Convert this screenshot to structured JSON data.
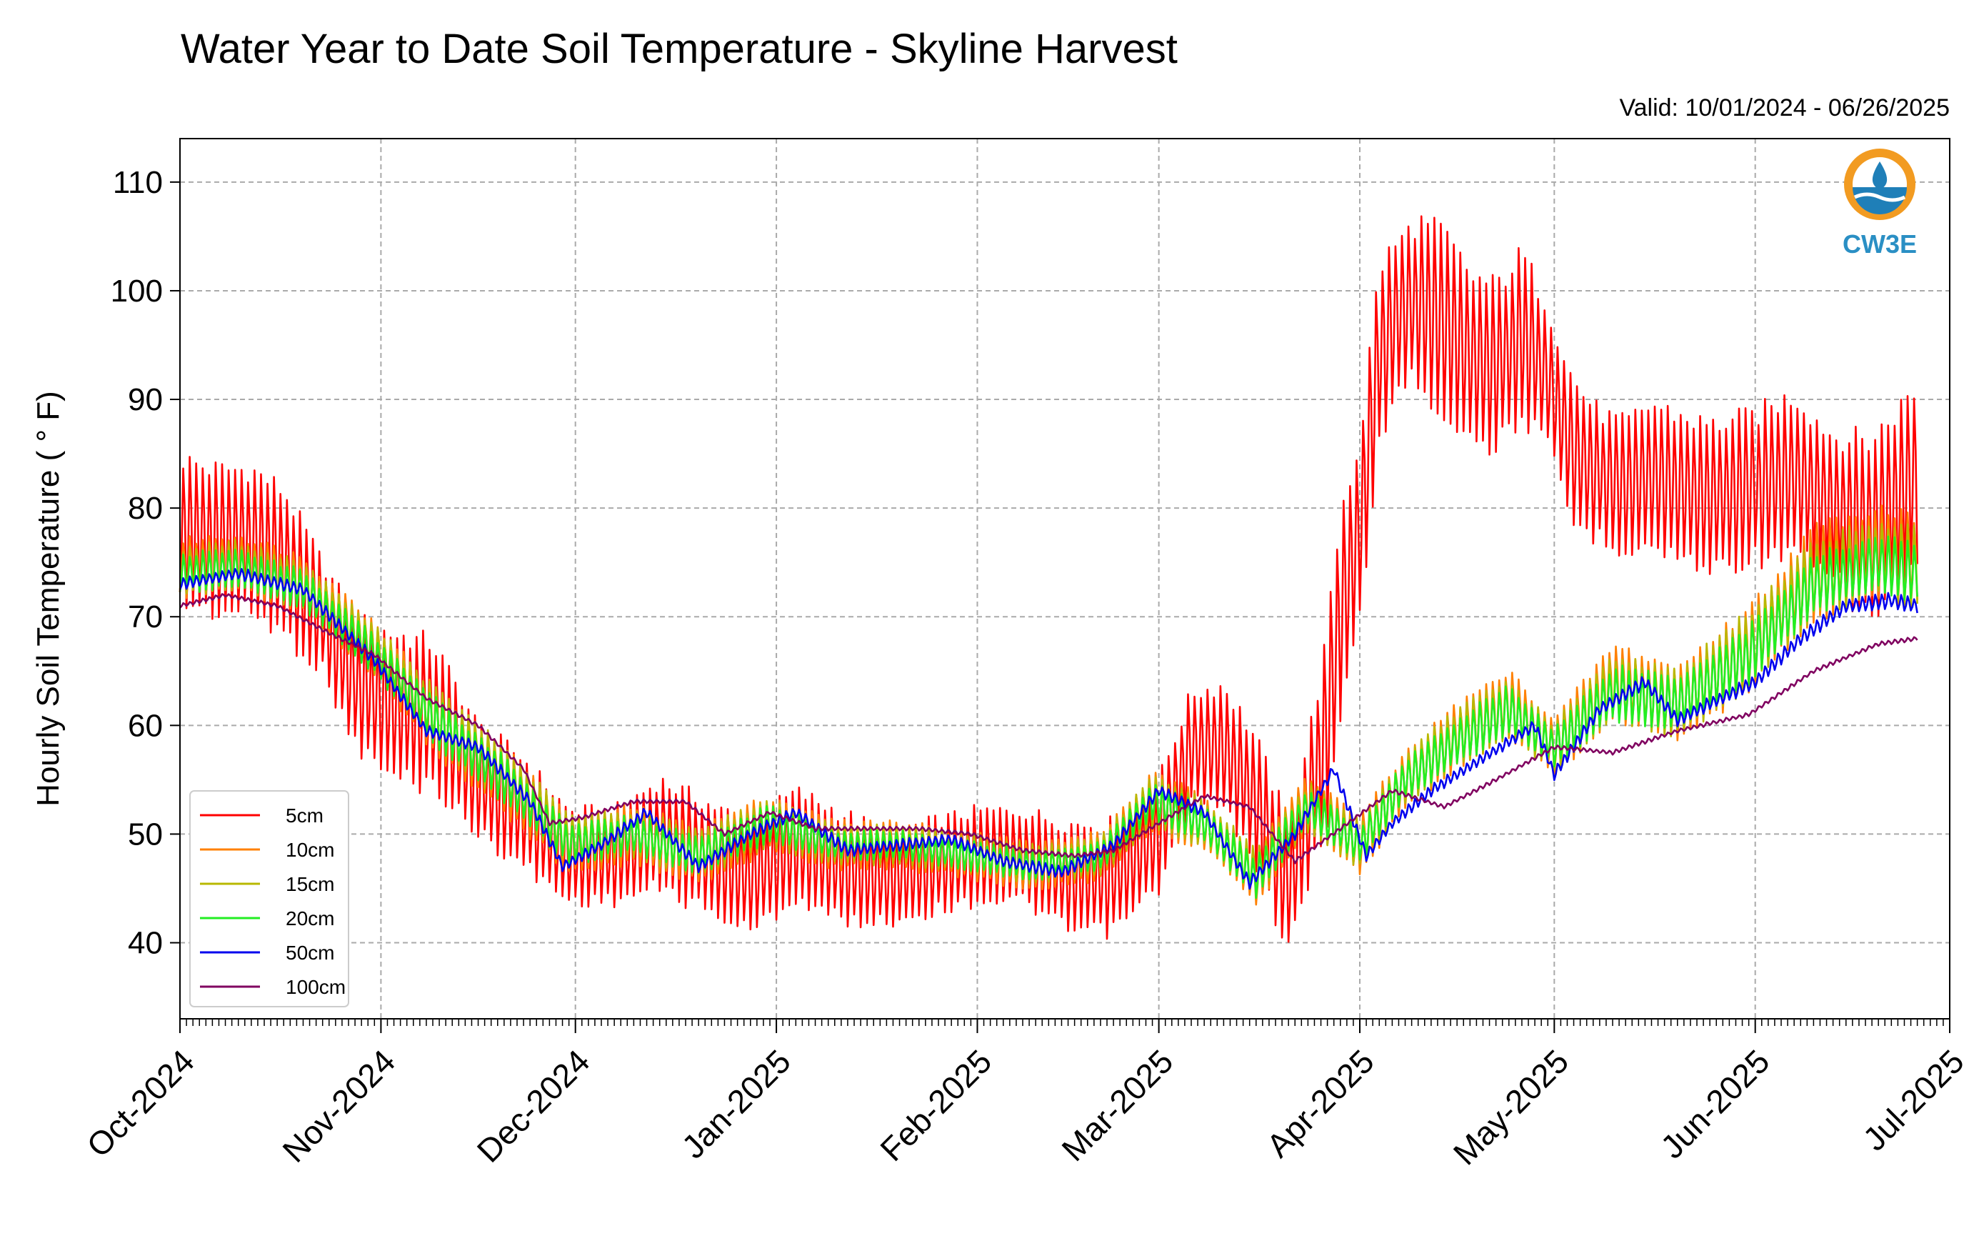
{
  "chart_data": {
    "type": "line",
    "title": "Water Year to Date Soil Temperature - Skyline Harvest",
    "subtitle": "Valid: 10/01/2024 - 06/26/2025",
    "xlabel": "",
    "ylabel": "Hourly Soil Temperature ( ° F)",
    "xlim": [
      "2024-10-01",
      "2025-07-01"
    ],
    "ylim": [
      33,
      114
    ],
    "yticks": [
      40,
      50,
      60,
      70,
      80,
      90,
      100,
      110
    ],
    "xticks": [
      "2024-10-01",
      "2024-11-01",
      "2024-12-01",
      "2025-01-01",
      "2025-02-01",
      "2025-03-01",
      "2025-04-01",
      "2025-05-01",
      "2025-06-01",
      "2025-07-01"
    ],
    "xtick_labels": [
      "Oct-2024",
      "Nov-2024",
      "Dec-2024",
      "Jan-2025",
      "Feb-2025",
      "Mar-2025",
      "Apr-2025",
      "May-2025",
      "Jun-2025",
      "Jul-2025"
    ],
    "grid": true,
    "legend_position": "lower-left",
    "logo_text": "CW3E",
    "series": [
      {
        "name": "5cm",
        "color": "#ff0000",
        "x": [
          "2024-10-01",
          "2024-10-06",
          "2024-10-12",
          "2024-10-17",
          "2024-10-23",
          "2024-10-28",
          "2024-11-02",
          "2024-11-09",
          "2024-11-16",
          "2024-11-23",
          "2024-11-30",
          "2024-12-07",
          "2024-12-14",
          "2024-12-21",
          "2024-12-28",
          "2025-01-04",
          "2025-01-11",
          "2025-01-18",
          "2025-01-25",
          "2025-02-01",
          "2025-02-08",
          "2025-02-15",
          "2025-02-22",
          "2025-03-01",
          "2025-03-06",
          "2025-03-11",
          "2025-03-16",
          "2025-03-21",
          "2025-03-24",
          "2025-03-27",
          "2025-03-29",
          "2025-04-01",
          "2025-04-04",
          "2025-04-07",
          "2025-04-10",
          "2025-04-14",
          "2025-04-18",
          "2025-04-22",
          "2025-04-26",
          "2025-04-30",
          "2025-05-04",
          "2025-05-08",
          "2025-05-12",
          "2025-05-16",
          "2025-05-20",
          "2025-05-25",
          "2025-06-01",
          "2025-06-07",
          "2025-06-13",
          "2025-06-19",
          "2025-06-26"
        ],
        "y": [
          78,
          77,
          77,
          75,
          70,
          64,
          62,
          61,
          55,
          52,
          48,
          48,
          50,
          48,
          46,
          49,
          47,
          46,
          47,
          48,
          48,
          46,
          46,
          50,
          58,
          58,
          53,
          45,
          52,
          60,
          70,
          78,
          94,
          98,
          99,
          97,
          94,
          93,
          96,
          92,
          85,
          83,
          82,
          83,
          82,
          81,
          82,
          83,
          80,
          78,
          83
        ],
        "amplitude": [
          8,
          8,
          8,
          8,
          6,
          7,
          8,
          8,
          6,
          6,
          5,
          5,
          6,
          6,
          6,
          6,
          6,
          5,
          5,
          5,
          5,
          6,
          6,
          6,
          6,
          7,
          7,
          7,
          8,
          10,
          12,
          10,
          10,
          8,
          9,
          10,
          9,
          9,
          9,
          8,
          8,
          7,
          7,
          8,
          8,
          8,
          8,
          9,
          8,
          10,
          10
        ]
      },
      {
        "name": "10cm",
        "color": "#ff8000",
        "x": [
          "2024-10-01",
          "2024-10-10",
          "2024-10-20",
          "2024-10-31",
          "2024-11-10",
          "2024-11-20",
          "2024-11-30",
          "2024-12-10",
          "2024-12-20",
          "2024-12-31",
          "2025-01-10",
          "2025-01-20",
          "2025-01-31",
          "2025-02-10",
          "2025-02-20",
          "2025-02-28",
          "2025-03-08",
          "2025-03-16",
          "2025-03-24",
          "2025-04-01",
          "2025-04-08",
          "2025-04-16",
          "2025-04-24",
          "2025-05-01",
          "2025-05-10",
          "2025-05-20",
          "2025-05-31",
          "2025-06-10",
          "2025-06-20",
          "2025-06-26"
        ],
        "y": [
          74.5,
          75,
          73,
          67,
          60,
          55,
          49,
          50,
          48,
          51,
          49,
          49,
          48,
          47,
          48,
          53,
          51,
          46,
          53,
          49,
          55,
          59,
          62,
          58,
          64,
          62,
          67,
          74,
          76,
          75
        ],
        "amplitude": [
          3,
          3,
          3,
          3,
          3.5,
          3.5,
          3,
          3,
          3,
          3,
          2.5,
          2.5,
          2.5,
          2.5,
          2.5,
          3,
          3,
          3,
          3,
          3,
          3,
          3.5,
          3.5,
          3,
          4,
          4,
          4.5,
          5,
          5,
          5
        ]
      },
      {
        "name": "15cm",
        "color": "#b8b800",
        "x": [
          "2024-10-01",
          "2024-10-10",
          "2024-10-20",
          "2024-10-31",
          "2024-11-10",
          "2024-11-20",
          "2024-11-30",
          "2024-12-10",
          "2024-12-20",
          "2024-12-31",
          "2025-01-10",
          "2025-01-20",
          "2025-01-31",
          "2025-02-10",
          "2025-02-20",
          "2025-02-28",
          "2025-03-08",
          "2025-03-16",
          "2025-03-24",
          "2025-04-01",
          "2025-04-08",
          "2025-04-16",
          "2025-04-24",
          "2025-05-01",
          "2025-05-10",
          "2025-05-20",
          "2025-05-31",
          "2025-06-10",
          "2025-06-20",
          "2025-06-26"
        ],
        "y": [
          74.2,
          74.8,
          72.8,
          67,
          60.5,
          55.5,
          49.5,
          50,
          48.3,
          51,
          49,
          49,
          48.2,
          47.2,
          48,
          53,
          51,
          46.5,
          52.5,
          49,
          55,
          59,
          61.5,
          58,
          63.5,
          62,
          67,
          73.5,
          75.5,
          74.5
        ],
        "amplitude": [
          2.5,
          2.5,
          2.5,
          2.5,
          3,
          3,
          2.5,
          2.5,
          2.5,
          2.5,
          2,
          2,
          2,
          2,
          2,
          2.5,
          2.5,
          2.5,
          2.5,
          2.5,
          2.5,
          3,
          3,
          2.5,
          3.5,
          3.5,
          4,
          4,
          4,
          4
        ]
      },
      {
        "name": "20cm",
        "color": "#22ee22",
        "x": [
          "2024-10-01",
          "2024-10-10",
          "2024-10-20",
          "2024-10-31",
          "2024-11-10",
          "2024-11-20",
          "2024-11-30",
          "2024-12-10",
          "2024-12-20",
          "2024-12-31",
          "2025-01-10",
          "2025-01-20",
          "2025-01-31",
          "2025-02-10",
          "2025-02-20",
          "2025-02-28",
          "2025-03-08",
          "2025-03-16",
          "2025-03-24",
          "2025-04-01",
          "2025-04-08",
          "2025-04-16",
          "2025-04-24",
          "2025-05-01",
          "2025-05-10",
          "2025-05-20",
          "2025-05-31",
          "2025-06-10",
          "2025-06-20",
          "2025-06-26"
        ],
        "y": [
          74,
          74.5,
          72.5,
          66.5,
          60,
          55,
          49,
          50,
          48,
          51,
          49,
          49,
          48,
          47,
          48,
          53,
          51,
          46,
          52.5,
          49,
          55,
          58.5,
          61.5,
          58,
          63,
          62,
          66.5,
          73,
          75,
          74
        ],
        "amplitude": [
          2,
          2,
          2,
          2,
          2.5,
          2.5,
          2,
          2,
          2,
          2,
          1.5,
          1.5,
          1.5,
          1.5,
          1.5,
          2,
          2,
          2,
          2,
          2,
          2,
          2.5,
          2.5,
          2,
          3,
          3,
          3,
          3,
          3,
          3
        ]
      },
      {
        "name": "50cm",
        "color": "#0000ee",
        "x": [
          "2024-10-01",
          "2024-10-10",
          "2024-10-20",
          "2024-10-31",
          "2024-11-08",
          "2024-11-16",
          "2024-11-24",
          "2024-11-29",
          "2024-12-05",
          "2024-12-12",
          "2024-12-20",
          "2024-12-28",
          "2025-01-04",
          "2025-01-12",
          "2025-01-20",
          "2025-01-28",
          "2025-02-05",
          "2025-02-14",
          "2025-02-22",
          "2025-03-01",
          "2025-03-08",
          "2025-03-15",
          "2025-03-22",
          "2025-03-28",
          "2025-04-02",
          "2025-04-06",
          "2025-04-12",
          "2025-04-20",
          "2025-04-28",
          "2025-05-01",
          "2025-05-08",
          "2025-05-15",
          "2025-05-20",
          "2025-05-25",
          "2025-06-01",
          "2025-06-08",
          "2025-06-15",
          "2025-06-22",
          "2025-06-26"
        ],
        "y": [
          73,
          74,
          72.5,
          66,
          59.5,
          58,
          53,
          47,
          49,
          52,
          47,
          50,
          52,
          48.5,
          49,
          49.5,
          47.5,
          46.5,
          49,
          54,
          52,
          45.5,
          50,
          56,
          48,
          51,
          54,
          57,
          60,
          55.5,
          61.5,
          64,
          60.5,
          62,
          64,
          68,
          71,
          71.5,
          71
        ],
        "amplitude": [
          0.6,
          0.6,
          0.6,
          0.6,
          0.6,
          0.6,
          0.6,
          0.6,
          0.6,
          0.6,
          0.6,
          0.6,
          0.6,
          0.6,
          0.6,
          0.6,
          0.6,
          0.6,
          0.6,
          0.6,
          0.6,
          0.6,
          0.6,
          0.6,
          0.6,
          0.6,
          0.6,
          0.6,
          0.6,
          0.6,
          0.7,
          0.7,
          0.7,
          0.7,
          0.7,
          0.8,
          0.8,
          0.8,
          0.8
        ]
      },
      {
        "name": "100cm",
        "color": "#800060",
        "x": [
          "2024-10-01",
          "2024-10-08",
          "2024-10-16",
          "2024-10-24",
          "2024-10-31",
          "2024-11-08",
          "2024-11-16",
          "2024-11-23",
          "2024-11-27",
          "2024-12-02",
          "2024-12-10",
          "2024-12-18",
          "2024-12-24",
          "2024-12-31",
          "2025-01-07",
          "2025-01-15",
          "2025-01-23",
          "2025-01-31",
          "2025-02-08",
          "2025-02-16",
          "2025-02-22",
          "2025-03-01",
          "2025-03-08",
          "2025-03-15",
          "2025-03-22",
          "2025-03-29",
          "2025-04-06",
          "2025-04-14",
          "2025-04-22",
          "2025-05-01",
          "2025-05-10",
          "2025-05-20",
          "2025-05-31",
          "2025-06-10",
          "2025-06-20",
          "2025-06-26"
        ],
        "y": [
          71,
          72,
          71,
          68.5,
          66.5,
          62.5,
          60,
          56,
          51,
          51.5,
          53,
          53,
          50,
          52,
          50.5,
          50.5,
          50.5,
          50,
          48.5,
          48,
          48.5,
          51,
          53.5,
          52.5,
          47.5,
          50.5,
          54,
          52.5,
          55,
          58,
          57.5,
          59.5,
          61,
          65,
          67.5,
          68
        ],
        "amplitude": [
          0.2,
          0.2,
          0.2,
          0.2,
          0.2,
          0.2,
          0.2,
          0.2,
          0.2,
          0.2,
          0.2,
          0.2,
          0.2,
          0.2,
          0.2,
          0.2,
          0.2,
          0.2,
          0.2,
          0.2,
          0.2,
          0.2,
          0.2,
          0.2,
          0.2,
          0.2,
          0.2,
          0.2,
          0.2,
          0.2,
          0.2,
          0.2,
          0.2,
          0.2,
          0.2,
          0.2
        ]
      }
    ]
  }
}
